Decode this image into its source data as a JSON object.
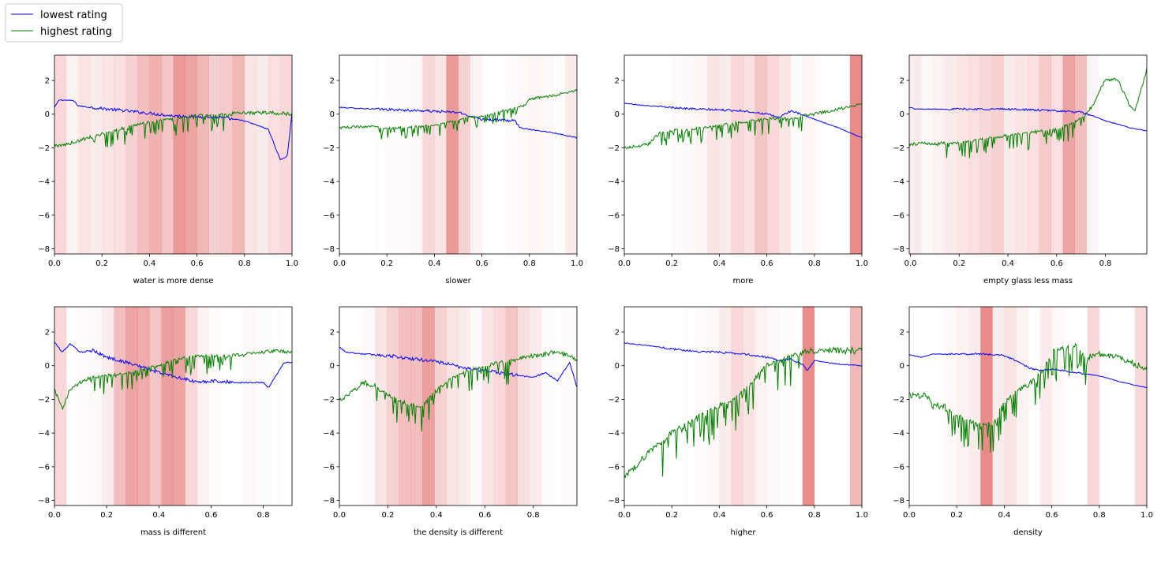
{
  "legend": {
    "entries": [
      {
        "label": "lowest rating",
        "color": "#0000ff"
      },
      {
        "label": "highest rating",
        "color": "#008000"
      }
    ]
  },
  "chart_data": [
    {
      "type": "line",
      "xlabel": "water is more dense",
      "xlim": [
        0,
        1.0
      ],
      "ylim": [
        -8.3,
        3.5
      ],
      "xticks": [
        0.0,
        0.2,
        0.4,
        0.6,
        0.8,
        1.0
      ],
      "yticks": [
        2,
        0,
        -2,
        -4,
        -6,
        -8
      ],
      "bands": {
        "start": 0.0,
        "step": 0.05,
        "intensity": [
          0.3,
          0.1,
          0.2,
          0.15,
          0.2,
          0.25,
          0.35,
          0.5,
          0.6,
          0.45,
          0.8,
          0.7,
          0.55,
          0.35,
          0.4,
          0.55,
          0.2,
          0.15,
          0.25,
          0.3
        ]
      },
      "series": [
        {
          "name": "lowest rating",
          "color": "#0000ff",
          "noise": 0.18,
          "x": [
            0,
            0.02,
            0.08,
            0.1,
            0.15,
            0.3,
            0.5,
            0.7,
            0.8,
            0.9,
            0.92,
            0.95,
            0.98,
            1.0
          ],
          "y": [
            0.4,
            0.85,
            0.8,
            0.5,
            0.4,
            0.2,
            -0.1,
            -0.2,
            -0.4,
            -0.9,
            -1.6,
            -2.7,
            -2.5,
            0.1
          ]
        },
        {
          "name": "highest rating",
          "color": "#008000",
          "noise": 0.5,
          "x": [
            0,
            0.02,
            0.1,
            0.2,
            0.3,
            0.4,
            0.5,
            0.6,
            0.7,
            0.8,
            0.9,
            1.0
          ],
          "y": [
            -1.8,
            -1.9,
            -1.6,
            -1.1,
            -0.7,
            -0.4,
            -0.2,
            0.0,
            0.05,
            0.05,
            0.1,
            0.0
          ]
        }
      ]
    },
    {
      "type": "line",
      "xlabel": "slower",
      "xlim": [
        0,
        1.0
      ],
      "ylim": [
        -8.3,
        3.5
      ],
      "xticks": [
        0.0,
        0.2,
        0.4,
        0.6,
        0.8,
        1.0
      ],
      "yticks": [
        2,
        0,
        -2,
        -4,
        -6,
        -8
      ],
      "bands": {
        "start": 0.0,
        "step": 0.05,
        "intensity": [
          0,
          0,
          0,
          0.02,
          0.03,
          0.04,
          0.05,
          0.3,
          0.2,
          0.8,
          0.35,
          0.1,
          0,
          0.02,
          0.03,
          0.05,
          0.08,
          0.06,
          0.03,
          0.15
        ]
      },
      "series": [
        {
          "name": "lowest rating",
          "color": "#0000ff",
          "noise": 0.15,
          "x": [
            0,
            0.15,
            0.25,
            0.35,
            0.5,
            0.55,
            0.6,
            0.74,
            0.75,
            0.76,
            0.8,
            0.9,
            1.0
          ],
          "y": [
            0.4,
            0.3,
            0.25,
            0.2,
            0.1,
            -0.1,
            -0.3,
            -0.4,
            -0.6,
            -0.8,
            -0.9,
            -1.1,
            -1.4
          ]
        },
        {
          "name": "highest rating",
          "color": "#008000",
          "noise": 0.35,
          "x": [
            0,
            0.15,
            0.2,
            0.3,
            0.4,
            0.5,
            0.55,
            0.6,
            0.7,
            0.78,
            0.8,
            0.85,
            0.9,
            1.0
          ],
          "y": [
            -0.8,
            -0.7,
            -0.8,
            -0.7,
            -0.6,
            -0.3,
            -0.1,
            -0.1,
            0.3,
            0.5,
            0.9,
            1.0,
            1.1,
            1.4
          ]
        }
      ]
    },
    {
      "type": "line",
      "xlabel": "more",
      "xlim": [
        0,
        1.0
      ],
      "ylim": [
        -8.3,
        3.5
      ],
      "xticks": [
        0.0,
        0.2,
        0.4,
        0.6,
        0.8,
        1.0
      ],
      "yticks": [
        2,
        0,
        -2,
        -4,
        -6,
        -8
      ],
      "bands": {
        "start": 0.0,
        "step": 0.05,
        "intensity": [
          0,
          0,
          0,
          0.01,
          0.03,
          0.05,
          0.08,
          0.2,
          0.15,
          0.3,
          0.25,
          0.45,
          0.3,
          0.2,
          0.03,
          0.08,
          0.02,
          0.01,
          0.02,
          0.9
        ]
      },
      "series": [
        {
          "name": "lowest rating",
          "color": "#0000ff",
          "noise": 0.12,
          "x": [
            0,
            0.1,
            0.2,
            0.3,
            0.4,
            0.5,
            0.6,
            0.65,
            0.7,
            0.8,
            0.9,
            1.0
          ],
          "y": [
            0.65,
            0.5,
            0.4,
            0.3,
            0.25,
            0.2,
            0.0,
            -0.2,
            0.2,
            -0.3,
            -0.8,
            -1.4
          ]
        },
        {
          "name": "highest rating",
          "color": "#008000",
          "noise": 0.45,
          "x": [
            0,
            0.1,
            0.15,
            0.2,
            0.3,
            0.4,
            0.5,
            0.6,
            0.7,
            0.8,
            0.9,
            1.0
          ],
          "y": [
            -2.0,
            -1.8,
            -1.1,
            -0.9,
            -0.8,
            -0.6,
            -0.4,
            -0.2,
            -0.2,
            0.0,
            0.3,
            0.6
          ]
        }
      ]
    },
    {
      "type": "line",
      "xlabel": "empty glass less mass",
      "xlim": [
        -0.005,
        0.97
      ],
      "ylim": [
        -8.3,
        3.5
      ],
      "xticks": [
        0.0,
        0.2,
        0.4,
        0.6,
        0.8
      ],
      "yticks": [
        2,
        0,
        -2,
        -4,
        -6,
        -8
      ],
      "bands": {
        "start": -0.005,
        "step": 0.0485,
        "intensity": [
          0.15,
          0.05,
          0.1,
          0.15,
          0.2,
          0.25,
          0.3,
          0.35,
          0.15,
          0.2,
          0.25,
          0.4,
          0.25,
          0.7,
          0.5,
          0.08,
          0.02,
          0.01,
          0.0,
          0.0
        ]
      },
      "series": [
        {
          "name": "lowest rating",
          "color": "#0000ff",
          "noise": 0.12,
          "x": [
            0,
            0.02,
            0.2,
            0.4,
            0.6,
            0.7,
            0.75,
            0.8,
            0.85,
            0.9,
            0.97
          ],
          "y": [
            0.4,
            0.3,
            0.3,
            0.3,
            0.2,
            0.1,
            -0.1,
            -0.4,
            -0.6,
            -0.8,
            -1.0
          ]
        },
        {
          "name": "highest rating",
          "color": "#008000",
          "noise": 0.5,
          "x": [
            0,
            0.05,
            0.1,
            0.2,
            0.4,
            0.6,
            0.7,
            0.75,
            0.78,
            0.8,
            0.85,
            0.9,
            0.92,
            0.97
          ],
          "y": [
            -1.8,
            -1.7,
            -1.8,
            -1.6,
            -1.2,
            -0.8,
            -0.2,
            0.5,
            1.5,
            2.0,
            2.1,
            0.5,
            0.1,
            2.7
          ]
        }
      ]
    },
    {
      "type": "line",
      "xlabel": "mass is different",
      "xlim": [
        0,
        0.91
      ],
      "ylim": [
        -8.3,
        3.5
      ],
      "xticks": [
        0.0,
        0.2,
        0.4,
        0.6,
        0.8
      ],
      "yticks": [
        2,
        0,
        -2,
        -4,
        -6,
        -8
      ],
      "bands": {
        "start": 0.0,
        "step": 0.0455,
        "intensity": [
          0.3,
          0.02,
          0.03,
          0.05,
          0.15,
          0.5,
          0.7,
          0.65,
          0.45,
          0.75,
          0.7,
          0.3,
          0.1,
          0.03,
          0.02,
          0.02,
          0.05,
          0.03,
          0.02,
          0.0
        ]
      },
      "series": [
        {
          "name": "lowest rating",
          "color": "#0000ff",
          "noise": 0.2,
          "x": [
            0,
            0.03,
            0.06,
            0.1,
            0.15,
            0.2,
            0.3,
            0.4,
            0.5,
            0.55,
            0.6,
            0.7,
            0.8,
            0.82,
            0.88,
            0.91
          ],
          "y": [
            1.4,
            0.8,
            1.3,
            0.8,
            0.9,
            0.5,
            0.1,
            -0.4,
            -0.8,
            -1.0,
            -0.9,
            -1.0,
            -1.0,
            -1.3,
            0.2,
            0.2
          ]
        },
        {
          "name": "highest rating",
          "color": "#008000",
          "noise": 0.55,
          "x": [
            0,
            0.03,
            0.06,
            0.1,
            0.15,
            0.2,
            0.3,
            0.4,
            0.5,
            0.6,
            0.7,
            0.8,
            0.85,
            0.91
          ],
          "y": [
            -1.4,
            -2.6,
            -1.4,
            -1.0,
            -0.6,
            -0.5,
            -0.3,
            0.1,
            0.6,
            0.7,
            0.6,
            0.8,
            0.9,
            0.8
          ]
        }
      ]
    },
    {
      "type": "line",
      "xlabel": "the density is different",
      "xlim": [
        0,
        0.98
      ],
      "ylim": [
        -8.3,
        3.5
      ],
      "xticks": [
        0.0,
        0.2,
        0.4,
        0.6,
        0.8
      ],
      "yticks": [
        2,
        0,
        -2,
        -4,
        -6,
        -8
      ],
      "bands": {
        "start": 0.0,
        "step": 0.049,
        "intensity": [
          0.02,
          0.02,
          0.05,
          0.2,
          0.35,
          0.5,
          0.5,
          0.75,
          0.35,
          0.2,
          0.15,
          0.05,
          0.2,
          0.3,
          0.45,
          0.25,
          0.15,
          0.03,
          0.02,
          0.03
        ]
      },
      "series": [
        {
          "name": "lowest rating",
          "color": "#0000ff",
          "noise": 0.2,
          "x": [
            0,
            0.03,
            0.1,
            0.2,
            0.3,
            0.38,
            0.45,
            0.5,
            0.6,
            0.7,
            0.8,
            0.85,
            0.9,
            0.95,
            0.98
          ],
          "y": [
            1.1,
            0.8,
            0.7,
            0.6,
            0.4,
            0.3,
            0.1,
            -0.1,
            -0.3,
            -0.5,
            -0.7,
            -0.4,
            -0.9,
            0.2,
            -1.3
          ]
        },
        {
          "name": "highest rating",
          "color": "#008000",
          "noise": 0.7,
          "x": [
            0,
            0.05,
            0.1,
            0.15,
            0.2,
            0.25,
            0.3,
            0.34,
            0.38,
            0.45,
            0.5,
            0.6,
            0.7,
            0.8,
            0.9,
            0.98
          ],
          "y": [
            -2.1,
            -1.6,
            -1.0,
            -1.2,
            -1.6,
            -2.0,
            -2.2,
            -2.4,
            -1.6,
            -0.8,
            -0.3,
            0.1,
            0.4,
            0.6,
            0.8,
            0.4
          ]
        }
      ]
    },
    {
      "type": "line",
      "xlabel": "higher",
      "xlim": [
        0,
        1.0
      ],
      "ylim": [
        -8.3,
        3.5
      ],
      "xticks": [
        0.0,
        0.2,
        0.4,
        0.6,
        0.8,
        1.0
      ],
      "yticks": [
        2,
        0,
        -2,
        -4,
        -6,
        -8
      ],
      "bands": {
        "start": 0.0,
        "step": 0.05,
        "intensity": [
          0,
          0,
          0,
          0,
          0,
          0.02,
          0.03,
          0.05,
          0.15,
          0.3,
          0.2,
          0.1,
          0.05,
          0.03,
          0.02,
          0.9,
          0.0,
          0.0,
          0.0,
          0.55
        ]
      },
      "series": [
        {
          "name": "lowest rating",
          "color": "#0000ff",
          "noise": 0.12,
          "x": [
            0,
            0.1,
            0.2,
            0.3,
            0.4,
            0.5,
            0.55,
            0.6,
            0.65,
            0.7,
            0.75,
            0.77,
            0.8,
            0.9,
            1.0
          ],
          "y": [
            1.35,
            1.2,
            1.0,
            0.85,
            0.8,
            0.7,
            0.6,
            0.5,
            0.3,
            0.4,
            0.1,
            -0.3,
            0.3,
            0.1,
            0.0
          ]
        },
        {
          "name": "highest rating",
          "color": "#008000",
          "noise": 1.0,
          "x": [
            0,
            0.1,
            0.15,
            0.2,
            0.25,
            0.3,
            0.35,
            0.4,
            0.45,
            0.5,
            0.55,
            0.6,
            0.65,
            0.7,
            0.8,
            0.9,
            1.0
          ],
          "y": [
            -6.6,
            -5.2,
            -4.6,
            -3.8,
            -3.4,
            -3.0,
            -2.6,
            -2.2,
            -1.9,
            -1.4,
            -0.6,
            0.2,
            0.4,
            0.8,
            0.9,
            0.9,
            0.9
          ]
        }
      ]
    },
    {
      "type": "line",
      "xlabel": "density",
      "xlim": [
        0,
        1.0
      ],
      "ylim": [
        -8.3,
        3.5
      ],
      "xticks": [
        0.0,
        0.2,
        0.4,
        0.6,
        0.8,
        1.0
      ],
      "yticks": [
        2,
        0,
        -2,
        -4,
        -6,
        -8
      ],
      "bands": {
        "start": 0.0,
        "step": 0.05,
        "intensity": [
          0,
          0,
          0.02,
          0.05,
          0.1,
          0.15,
          0.9,
          0.15,
          0.2,
          0.1,
          0.02,
          0.15,
          0.05,
          0.02,
          0.01,
          0.3,
          0.0,
          0.0,
          0.0,
          0.3
        ]
      },
      "series": [
        {
          "name": "lowest rating",
          "color": "#0000ff",
          "noise": 0.1,
          "x": [
            0,
            0.05,
            0.1,
            0.2,
            0.3,
            0.4,
            0.45,
            0.5,
            0.55,
            0.6,
            0.7,
            0.8,
            0.9,
            1.0
          ],
          "y": [
            0.65,
            0.5,
            0.7,
            0.7,
            0.7,
            0.6,
            0.3,
            -0.1,
            -0.3,
            -0.2,
            -0.4,
            -0.6,
            -1.0,
            -1.3
          ]
        },
        {
          "name": "highest rating",
          "color": "#008000",
          "noise": 0.9,
          "x": [
            0,
            0.05,
            0.07,
            0.1,
            0.15,
            0.2,
            0.25,
            0.3,
            0.35,
            0.4,
            0.45,
            0.5,
            0.55,
            0.6,
            0.7,
            0.75,
            0.8,
            0.9,
            1.0
          ],
          "y": [
            -1.7,
            -1.8,
            -1.8,
            -2.4,
            -2.4,
            -2.8,
            -3.1,
            -3.4,
            -3.3,
            -2.0,
            -1.4,
            -1.0,
            -0.4,
            1.0,
            1.3,
            0.5,
            0.7,
            0.4,
            -0.2
          ]
        }
      ]
    }
  ]
}
